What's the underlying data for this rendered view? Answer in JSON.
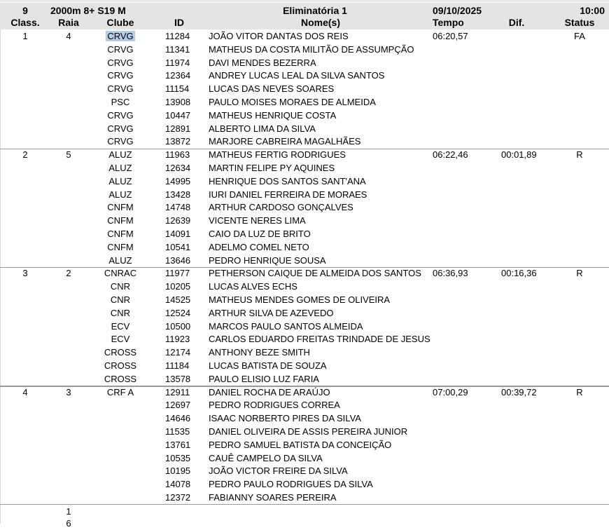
{
  "header": {
    "race_number": "9",
    "event": "2000m  8+ S19 M",
    "heat": "Eliminatória 1",
    "date": "09/10/2025",
    "time": "10:00",
    "columns": {
      "class": "Class.",
      "raia": "Raia",
      "clube": "Clube",
      "id": "ID",
      "nomes": "Nome(s)",
      "tempo": "Tempo",
      "dif": "Dif.",
      "status": "Status"
    }
  },
  "crews": [
    {
      "class": "1",
      "raia": "4",
      "tempo": "06:20,57",
      "dif": "",
      "status": "FA",
      "rowers": [
        {
          "clube": "CRVG",
          "id": "11284",
          "nome": "JOÃO VITOR DANTAS DOS REIS"
        },
        {
          "clube": "CRVG",
          "id": "11341",
          "nome": "MATHEUS DA COSTA MILITÃO DE ASSUMPÇÃO"
        },
        {
          "clube": "CRVG",
          "id": "11974",
          "nome": "DAVI MENDES BEZERRA"
        },
        {
          "clube": "CRVG",
          "id": "12364",
          "nome": "ANDREY LUCAS LEAL DA SILVA SANTOS"
        },
        {
          "clube": "CRVG",
          "id": "11154",
          "nome": "LUCAS DAS NEVES SOARES"
        },
        {
          "clube": "PSC",
          "id": "13908",
          "nome": "PAULO MOISES MORAES DE ALMEIDA"
        },
        {
          "clube": "CRVG",
          "id": "10447",
          "nome": "MATHEUS HENRIQUE COSTA"
        },
        {
          "clube": "CRVG",
          "id": "12891",
          "nome": "ALBERTO LIMA DA SILVA"
        },
        {
          "clube": "CRVG",
          "id": "13872",
          "nome": "MARJORE CABREIRA MAGALHÃES"
        }
      ]
    },
    {
      "class": "2",
      "raia": "5",
      "tempo": "06:22,46",
      "dif": "00:01,89",
      "status": "R",
      "rowers": [
        {
          "clube": "ALUZ",
          "id": "11963",
          "nome": "MATHEUS FERTIG RODRIGUES"
        },
        {
          "clube": "ALUZ",
          "id": "12634",
          "nome": "MARTIN FELIPE PY AQUINES"
        },
        {
          "clube": "ALUZ",
          "id": "14995",
          "nome": "HENRIQUE DOS SANTOS SANT'ANA"
        },
        {
          "clube": "ALUZ",
          "id": "13428",
          "nome": "IURI DANIEL FERREIRA DE MORAES"
        },
        {
          "clube": "CNFM",
          "id": "14748",
          "nome": "ARTHUR CARDOSO GONÇALVES"
        },
        {
          "clube": "CNFM",
          "id": "12639",
          "nome": "VICENTE NERES LIMA"
        },
        {
          "clube": "CNFM",
          "id": "14091",
          "nome": "CAIO DA LUZ DE BRITO"
        },
        {
          "clube": "CNFM",
          "id": "10541",
          "nome": "ADELMO COMEL NETO"
        },
        {
          "clube": "ALUZ",
          "id": "13646",
          "nome": "PEDRO HENRIQUE SOUSA"
        }
      ]
    },
    {
      "class": "3",
      "raia": "2",
      "tempo": "06:36,93",
      "dif": "00:16,36",
      "status": "R",
      "rowers": [
        {
          "clube": "CNRAC",
          "id": "11977",
          "nome": "PETHERSON CAIQUE DE ALMEIDA DOS SANTOS"
        },
        {
          "clube": "CNR",
          "id": "10205",
          "nome": "LUCAS ALVES ECHS"
        },
        {
          "clube": "CNR",
          "id": "14525",
          "nome": "MATHEUS MENDES GOMES DE OLIVEIRA"
        },
        {
          "clube": "CNR",
          "id": "12524",
          "nome": "ARTHUR SILVA DE AZEVEDO"
        },
        {
          "clube": "ECV",
          "id": "10500",
          "nome": "MARCOS PAULO SANTOS ALMEIDA"
        },
        {
          "clube": "ECV",
          "id": "11923",
          "nome": "CARLOS EDUARDO FREITAS TRINDADE DE JESUS"
        },
        {
          "clube": "CROSS",
          "id": "12174",
          "nome": "ANTHONY BEZE SMITH"
        },
        {
          "clube": "CROSS",
          "id": "11184",
          "nome": "LUCAS BATISTA DE SOUZA"
        },
        {
          "clube": "CROSS",
          "id": "13578",
          "nome": "PAULO ELISIO LUZ FARIA"
        }
      ]
    },
    {
      "class": "4",
      "raia": "3",
      "tempo": "07:00,29",
      "dif": "00:39,72",
      "status": "R",
      "rowers": [
        {
          "clube": "CRF A",
          "id": "12911",
          "nome": "DANIEL ROCHA DE ARAÚJO"
        },
        {
          "clube": "",
          "id": "12697",
          "nome": "PEDRO RODRIGUES CORREA"
        },
        {
          "clube": "",
          "id": "14646",
          "nome": "ISAAC NORBERTO PIRES DA SILVA"
        },
        {
          "clube": "",
          "id": "11535",
          "nome": "DANIEL OLIVEIRA DE ASSIS PEREIRA JUNIOR"
        },
        {
          "clube": "",
          "id": "13761",
          "nome": "PEDRO SAMUEL BATISTA DA CONCEIÇÃO"
        },
        {
          "clube": "",
          "id": "10535",
          "nome": "CAUÊ CAMPELO DA SILVA"
        },
        {
          "clube": "",
          "id": "10195",
          "nome": "JOÃO VICTOR FREIRE DA SILVA"
        },
        {
          "clube": "",
          "id": "14078",
          "nome": "PEDRO PAULO RODRIGUES DA SILVA"
        },
        {
          "clube": "",
          "id": "12372",
          "nome": "FABIANNY SOARES PEREIRA"
        }
      ]
    }
  ],
  "footer": {
    "raia_values": [
      "1",
      "6"
    ]
  },
  "colors": {
    "header_bg": "#e4e4e4",
    "selection": "#b3cde7",
    "separator": "#9a9a9a"
  }
}
